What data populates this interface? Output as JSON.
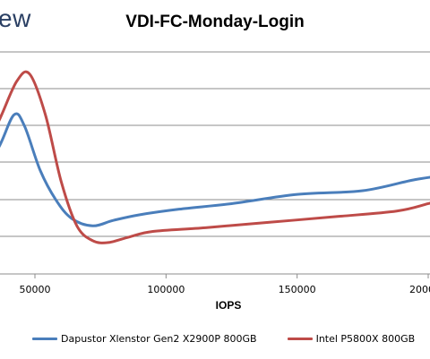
{
  "logo": {
    "text_fragment": "ew"
  },
  "chart_data": {
    "type": "line",
    "title": "VDI-FC-Monday-Login",
    "xlabel": "IOPS",
    "ylabel": "",
    "x_tick_labels": [
      "50000",
      "100000",
      "150000",
      "200000"
    ],
    "x_ticks": [
      50000,
      100000,
      150000,
      200000
    ],
    "grid": true,
    "legend_position": "bottom",
    "series": [
      {
        "name": "Dapustor Xlenstor Gen2 X2900P 800GB",
        "color": "#4a7ebb",
        "points": [
          [
            29000,
            0.28
          ],
          [
            36000,
            0.34
          ],
          [
            42000,
            0.43
          ],
          [
            46000,
            0.4
          ],
          [
            52000,
            0.28
          ],
          [
            58000,
            0.2
          ],
          [
            64000,
            0.15
          ],
          [
            72000,
            0.13
          ],
          [
            80000,
            0.145
          ],
          [
            90000,
            0.16
          ],
          [
            105000,
            0.175
          ],
          [
            125000,
            0.19
          ],
          [
            150000,
            0.215
          ],
          [
            175000,
            0.225
          ],
          [
            195000,
            0.255
          ],
          [
            210000,
            0.27
          ]
        ]
      },
      {
        "name": "Intel P5800X 800GB",
        "color": "#be4b48",
        "points": [
          [
            29000,
            0.32
          ],
          [
            36000,
            0.41
          ],
          [
            43000,
            0.52
          ],
          [
            48000,
            0.54
          ],
          [
            54000,
            0.43
          ],
          [
            60000,
            0.25
          ],
          [
            66000,
            0.13
          ],
          [
            72000,
            0.09
          ],
          [
            78000,
            0.085
          ],
          [
            86000,
            0.1
          ],
          [
            95000,
            0.115
          ],
          [
            115000,
            0.125
          ],
          [
            140000,
            0.14
          ],
          [
            165000,
            0.155
          ],
          [
            188000,
            0.17
          ],
          [
            200000,
            0.19
          ],
          [
            210000,
            0.21
          ]
        ]
      }
    ]
  }
}
